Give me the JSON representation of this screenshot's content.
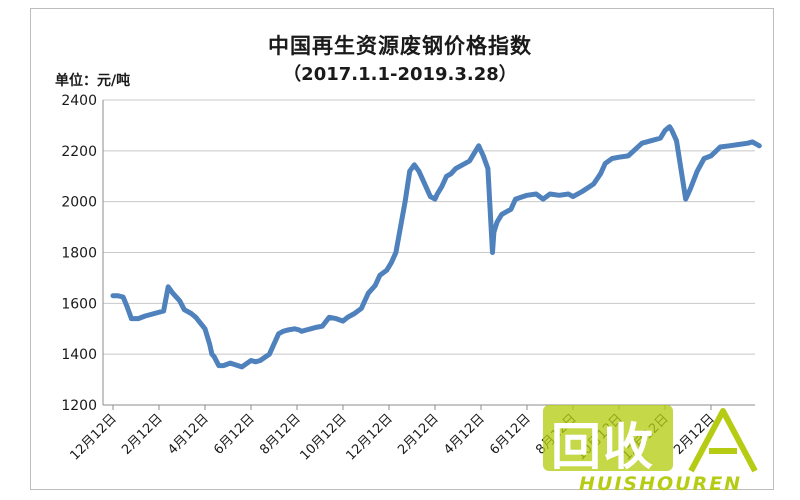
{
  "chart_data": {
    "type": "line",
    "title": "中国再生资源废钢价格指数",
    "subtitle": "（2017.1.1-2019.3.28）",
    "ylabel": "单位：元/吨",
    "xlabel": "",
    "ylim": [
      1200,
      2400
    ],
    "yticks": [
      1200,
      1400,
      1600,
      1800,
      2000,
      2200,
      2400
    ],
    "grid": true,
    "legend": "none",
    "x_tick_labels": [
      "12月12日",
      "2月12日",
      "4月12日",
      "6月12日",
      "8月12日",
      "10月12日",
      "12月12日",
      "2月12日",
      "4月12日",
      "6月12日",
      "8月12日",
      "10月12日",
      "12月12日",
      "2月12日"
    ],
    "series": [
      {
        "color": "#4f81bd",
        "x": [
          0,
          0.1,
          0.22,
          0.3,
          0.4,
          0.55,
          0.7,
          0.9,
          1.1,
          1.2,
          1.3,
          1.45,
          1.55,
          1.7,
          1.8,
          2.0,
          2.1,
          2.15,
          2.2,
          2.3,
          2.4,
          2.55,
          2.8,
          3.0,
          3.1,
          3.2,
          3.4,
          3.6,
          3.7,
          3.8,
          3.95,
          4.05,
          4.1,
          4.2,
          4.3,
          4.4,
          4.55,
          4.7,
          4.85,
          5.0,
          5.1,
          5.25,
          5.4,
          5.55,
          5.7,
          5.8,
          5.95,
          6.05,
          6.15,
          6.25,
          6.35,
          6.45,
          6.55,
          6.65,
          6.75,
          6.9,
          7.0,
          7.05,
          7.15,
          7.25,
          7.35,
          7.45,
          7.55,
          7.75,
          7.95,
          8.05,
          8.15,
          8.25,
          8.28,
          8.35,
          8.45,
          8.55,
          8.65,
          8.75,
          9.0,
          9.2,
          9.35,
          9.5,
          9.7,
          9.9,
          10.0,
          10.2,
          10.45,
          10.6,
          10.7,
          10.85,
          11.0,
          11.2,
          11.5,
          11.7,
          11.9,
          12.0,
          12.1,
          12.15,
          12.25,
          12.45,
          12.55,
          12.7,
          12.85,
          13.0,
          13.2,
          13.4,
          13.6,
          13.8,
          13.9,
          14.0,
          14.05
        ],
        "values": [
          1630,
          1630,
          1625,
          1590,
          1540,
          1540,
          1550,
          1560,
          1570,
          1665,
          1640,
          1610,
          1575,
          1560,
          1545,
          1500,
          1440,
          1400,
          1390,
          1355,
          1355,
          1365,
          1350,
          1375,
          1370,
          1375,
          1400,
          1480,
          1490,
          1495,
          1500,
          1495,
          1490,
          1495,
          1500,
          1505,
          1510,
          1545,
          1540,
          1530,
          1545,
          1560,
          1580,
          1640,
          1670,
          1710,
          1730,
          1760,
          1800,
          1900,
          2000,
          2120,
          2145,
          2120,
          2080,
          2020,
          2010,
          2030,
          2060,
          2100,
          2110,
          2130,
          2140,
          2160,
          2220,
          2180,
          2130,
          1800,
          1880,
          1920,
          1950,
          1960,
          1970,
          2010,
          2025,
          2030,
          2010,
          2030,
          2025,
          2030,
          2020,
          2040,
          2070,
          2110,
          2150,
          2170,
          2175,
          2180,
          2230,
          2240,
          2250,
          2280,
          2295,
          2280,
          2240,
          2010,
          2050,
          2120,
          2170,
          2180,
          2215,
          2220,
          2225,
          2230,
          2235,
          2225,
          2220
        ]
      }
    ]
  },
  "watermark": {
    "main": "回收",
    "sub": "HUISHOUREN"
  },
  "colors": {
    "line": "#4f81bd",
    "grid": "#c8c8c8",
    "watermark": "#b6cc14"
  }
}
